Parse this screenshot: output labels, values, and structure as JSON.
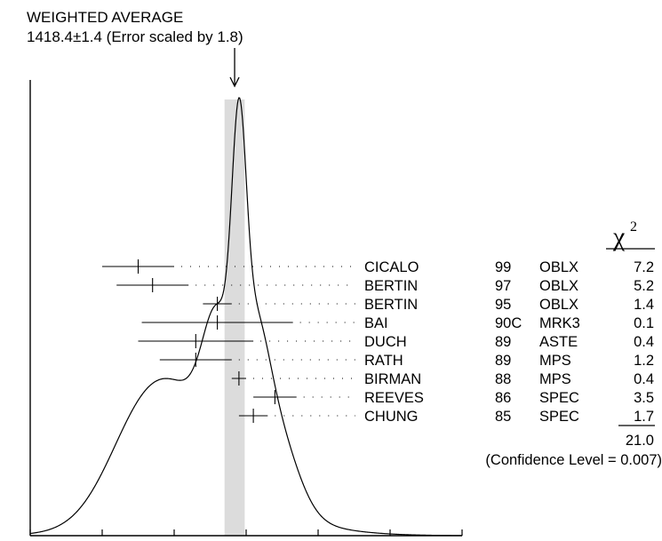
{
  "chart_data": {
    "type": "ideogram",
    "title": "WEIGHTED AVERAGE",
    "subtitle": "1418.4±1.4 (Error scaled by 1.8)",
    "average": 1418.4,
    "average_band": [
      1417.0,
      1419.8
    ],
    "x_range": [
      1390,
      1450
    ],
    "x_ticks": [
      "1390",
      "1400",
      "1410",
      "1420",
      "1430",
      "1440",
      "1450"
    ],
    "chi2_label": "χ",
    "chi2_exponent": "2",
    "measurements": [
      {
        "author": "CICALO",
        "year": "99",
        "tech": "OBLX",
        "chi2": "7.2",
        "value": 1405.0,
        "error": 5.0
      },
      {
        "author": "BERTIN",
        "year": "97",
        "tech": "OBLX",
        "chi2": "5.2",
        "value": 1407.0,
        "error": 5.0
      },
      {
        "author": "BERTIN",
        "year": "95",
        "tech": "OBLX",
        "chi2": "1.4",
        "value": 1416.0,
        "error": 2.0
      },
      {
        "author": "BAI",
        "year": "90C",
        "tech": "MRK3",
        "chi2": "0.1",
        "value": 1416.0,
        "error": 10.5
      },
      {
        "author": "DUCH",
        "year": "89",
        "tech": "ASTE",
        "chi2": "0.4",
        "value": 1413.0,
        "error": 8.0
      },
      {
        "author": "RATH",
        "year": "89",
        "tech": "MPS",
        "chi2": "1.2",
        "value": 1413.0,
        "error": 5.0
      },
      {
        "author": "BIRMAN",
        "year": "88",
        "tech": "MPS",
        "chi2": "0.4",
        "value": 1419.0,
        "error": 1.0
      },
      {
        "author": "REEVES",
        "year": "86",
        "tech": "SPEC",
        "chi2": "3.5",
        "value": 1424.0,
        "error": 3.0
      },
      {
        "author": "CHUNG",
        "year": "85",
        "tech": "SPEC",
        "chi2": "1.7",
        "value": 1421.0,
        "error": 2.0
      }
    ],
    "chi2_total": "21.0",
    "confidence_text": "(Confidence Level = 0.007)"
  }
}
